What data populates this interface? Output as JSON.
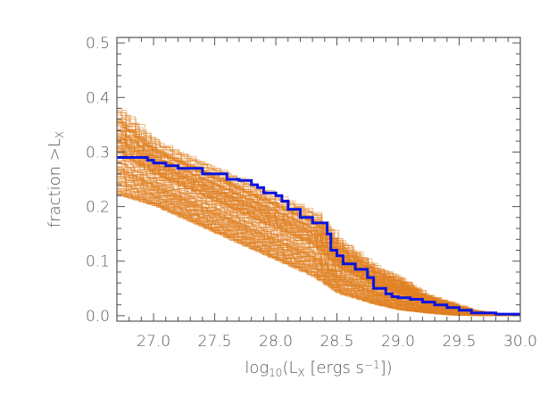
{
  "chart_data": {
    "type": "line",
    "title": "",
    "xlabel_parts": {
      "prefix": "log",
      "sub": "10",
      "mid": "(L",
      "sub2": "X",
      "mid2": " [ergs s",
      "sup": "−1",
      "suffix": "])"
    },
    "ylabel_parts": {
      "prefix": "fraction >L",
      "sub": "X"
    },
    "xlim": [
      26.7,
      30.0
    ],
    "ylim": [
      -0.01,
      0.51
    ],
    "x_ticks": [
      27.0,
      27.5,
      28.0,
      28.5,
      29.0,
      29.5,
      30.0
    ],
    "x_tick_labels": [
      "27.0",
      "27.5",
      "28.0",
      "28.5",
      "29.0",
      "29.5",
      "30.0"
    ],
    "y_ticks": [
      0.0,
      0.1,
      0.2,
      0.3,
      0.4,
      0.5
    ],
    "y_tick_labels": [
      "0.0",
      "0.1",
      "0.2",
      "0.3",
      "0.4",
      "0.5"
    ],
    "colors": {
      "observed": "#0a14e0",
      "simulations": "#e08020",
      "axis": "#555555"
    },
    "series": [
      {
        "kind": "step-line",
        "x": [
          26.7,
          26.95,
          27.0,
          27.1,
          27.2,
          27.4,
          27.6,
          27.7,
          27.8,
          27.85,
          27.9,
          28.0,
          28.05,
          28.1,
          28.2,
          28.3,
          28.42,
          28.45,
          28.5,
          28.55,
          28.65,
          28.75,
          28.8,
          28.9,
          28.95,
          29.0,
          29.1,
          29.2,
          29.3,
          29.4,
          29.5,
          29.6,
          29.8,
          30.0
        ],
        "y": [
          0.29,
          0.285,
          0.28,
          0.275,
          0.27,
          0.26,
          0.25,
          0.248,
          0.24,
          0.235,
          0.225,
          0.22,
          0.21,
          0.195,
          0.18,
          0.17,
          0.15,
          0.12,
          0.11,
          0.095,
          0.085,
          0.07,
          0.05,
          0.04,
          0.035,
          0.033,
          0.03,
          0.025,
          0.02,
          0.015,
          0.01,
          0.005,
          0.003,
          0.0
        ]
      },
      {
        "kind": "simulation-envelope",
        "x": [
          26.7,
          27.0,
          27.5,
          28.0,
          28.3,
          28.5,
          28.8,
          29.0,
          29.2,
          29.4,
          29.6,
          29.8,
          30.0
        ],
        "upper": [
          0.38,
          0.32,
          0.27,
          0.22,
          0.19,
          0.14,
          0.09,
          0.07,
          0.04,
          0.025,
          0.01,
          0.004,
          0.0
        ],
        "lower": [
          0.22,
          0.2,
          0.15,
          0.1,
          0.07,
          0.04,
          0.02,
          0.01,
          0.005,
          0.001,
          0.0,
          0.0,
          0.0
        ]
      }
    ]
  }
}
